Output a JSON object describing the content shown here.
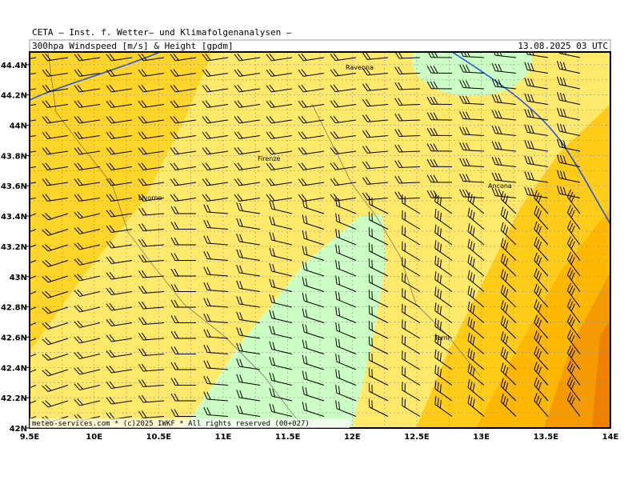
{
  "header": {
    "title": "CETA – Inst. f. Wetter– und Klimafolgenanalysen –",
    "subtitle": "300hpa Windspeed [m/s] & Height [gpdm]",
    "date": "13.08.2025 03 UTC"
  },
  "map": {
    "lat_labels": [
      "44.4N",
      "44.2N",
      "44N",
      "43.8N",
      "43.6N",
      "43.4N",
      "43.2N",
      "43N",
      "42.8N",
      "42.6N",
      "42.4N",
      "42.2N",
      "42N"
    ],
    "lon_labels": [
      "9.5E",
      "10E",
      "10.5E",
      "11E",
      "11.5E",
      "12E",
      "12.5E",
      "13E",
      "13.5E",
      "14E"
    ],
    "cities": [
      "Ravenna",
      "Firenze",
      "Livorno",
      "Ancona",
      "Terni"
    ]
  },
  "footer": "meteo-services.com * (c)2025 IWKF * All rights reserved (00+027)"
}
